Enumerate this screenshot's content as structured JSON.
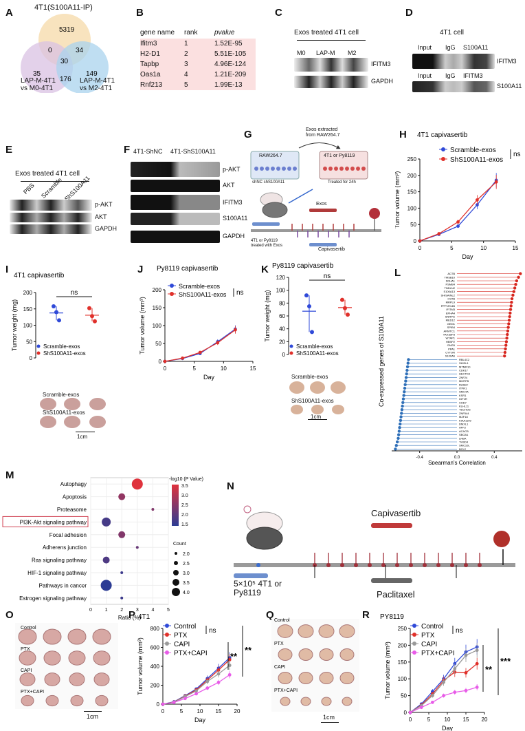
{
  "panels": {
    "A": "A",
    "B": "B",
    "C": "C",
    "D": "D",
    "E": "E",
    "F": "F",
    "G": "G",
    "H": "H",
    "I": "I",
    "J": "J",
    "K": "K",
    "L": "L",
    "M": "M",
    "N": "N",
    "O": "O",
    "P": "P",
    "Q": "Q",
    "R": "R"
  },
  "venn": {
    "title": "4T1(S100A11-IP)",
    "label_left": "LAP-M-4T1\nvs M0-4T1",
    "label_right": "LAP-M-4T1\nvs M2-4T1",
    "regions": {
      "top_only": "5319",
      "left_only": "35",
      "right_only": "149",
      "top_left": "0",
      "top_right": "34",
      "left_right": "176",
      "center": "30"
    },
    "colors": {
      "top": "#f5d9a8",
      "left": "#d9c2e3",
      "right": "#a9d3ee"
    }
  },
  "table_b": {
    "headers": [
      "gene name",
      "rank",
      "pvalue"
    ],
    "rows": [
      [
        "Ifitm3",
        "1",
        "1.52E-95"
      ],
      [
        "H2-D1",
        "2",
        "5.51E-105"
      ],
      [
        "Tapbp",
        "3",
        "4.96E-124"
      ],
      [
        "Oas1a",
        "4",
        "1.21E-209"
      ],
      [
        "Rnf213",
        "5",
        "1.99E-13"
      ]
    ],
    "row_color": "#fbe0e0"
  },
  "blot_c": {
    "title": "Exos treated 4T1 cell",
    "lanes": [
      "M0",
      "LAP-M",
      "M2"
    ],
    "bands": [
      "IFITM3",
      "GAPDH"
    ]
  },
  "blot_d": {
    "title": "4T1 cell",
    "lanes1": [
      "Input",
      "IgG",
      "S100A11"
    ],
    "band1": "IFITM3",
    "lanes2": [
      "Input",
      "IgG",
      "IFITM3"
    ],
    "band2": "S100A11"
  },
  "blot_e": {
    "title": "Exos treated 4T1 cell",
    "lanes": [
      "PBS",
      "Scramble",
      "ShS100A11"
    ],
    "bands": [
      "p-AKT",
      "AKT",
      "GAPDH"
    ]
  },
  "blot_f": {
    "lanes": [
      "4T1-ShNC",
      "4T1-ShS100A11"
    ],
    "bands": [
      "p-AKT",
      "AKT",
      "IFITM3",
      "S100A11",
      "GAPDH"
    ]
  },
  "schematic_g": {
    "note": "Exos extracted\nfrom RAW264.7",
    "dish1": "RAW264.7",
    "dish1_sub": "shNC  shS100A11",
    "dish2": "4T1 or Py8119",
    "dish2_sub": "Treated for 24h",
    "exos": "Exos",
    "drug": "Capivasertib",
    "mouse_note": "4T1 or Py8119\ntreated with Exos"
  },
  "chart_data": [
    {
      "id": "H",
      "type": "line",
      "title": "4T1 capivasertib",
      "xlabel": "Day",
      "ylabel": "Tumor volume (mm³)",
      "xlim": [
        0,
        15
      ],
      "ylim": [
        0,
        250
      ],
      "xticks": [
        0,
        5,
        10,
        15
      ],
      "yticks": [
        0,
        50,
        100,
        150,
        200,
        250
      ],
      "series": [
        {
          "name": "Scramble-exos",
          "color": "#2f49d8",
          "x": [
            0,
            3,
            6,
            9,
            12
          ],
          "y": [
            0,
            20,
            45,
            110,
            185
          ]
        },
        {
          "name": "ShS100A11-exos",
          "color": "#e0302a",
          "x": [
            0,
            3,
            6,
            9,
            12
          ],
          "y": [
            0,
            22,
            58,
            125,
            180
          ]
        }
      ],
      "annotation": "ns"
    },
    {
      "id": "I",
      "type": "scatter",
      "title": "4T1 capivasertib",
      "ylabel": "Tumor weight (mg)",
      "ylim": [
        0,
        200
      ],
      "yticks": [
        0,
        50,
        100,
        150,
        200
      ],
      "series": [
        {
          "name": "Scramble-exos",
          "color": "#2f49d8",
          "values": [
            158,
            140,
            115
          ]
        },
        {
          "name": "ShS100A11-exos",
          "color": "#e0302a",
          "values": [
            152,
            128,
            112
          ]
        }
      ],
      "annotation": "ns",
      "photo_labels": [
        "Scramble-exos",
        "ShS100A11-exos"
      ],
      "scale": "1cm"
    },
    {
      "id": "J",
      "type": "line",
      "title": "Py8119 capivasertib",
      "xlabel": "Day",
      "ylabel": "Tumor volume (mm³)",
      "xlim": [
        0,
        15
      ],
      "ylim": [
        0,
        200
      ],
      "xticks": [
        0,
        5,
        10,
        15
      ],
      "yticks": [
        0,
        50,
        100,
        150,
        200
      ],
      "series": [
        {
          "name": "Scramble-exos",
          "color": "#2f49d8",
          "x": [
            0,
            3,
            6,
            9,
            12
          ],
          "y": [
            0,
            8,
            22,
            55,
            90
          ]
        },
        {
          "name": "ShS100A11-exos",
          "color": "#e0302a",
          "x": [
            0,
            3,
            6,
            9,
            12
          ],
          "y": [
            0,
            9,
            25,
            52,
            88
          ]
        }
      ],
      "annotation": "ns"
    },
    {
      "id": "K",
      "type": "scatter",
      "title": "Py8119 capivasertib",
      "ylabel": "Tumor weight (mg)",
      "ylim": [
        0,
        120
      ],
      "yticks": [
        0,
        20,
        40,
        60,
        80,
        100,
        120
      ],
      "series": [
        {
          "name": "Scramble-exos",
          "color": "#2f49d8",
          "values": [
            92,
            75,
            35
          ]
        },
        {
          "name": "ShS100A11-exos",
          "color": "#e0302a",
          "values": [
            85,
            72,
            62
          ]
        }
      ],
      "annotation": "ns",
      "photo_labels": [
        "Scramble-exos",
        "ShS100A11-exos"
      ],
      "scale": "1cm"
    },
    {
      "id": "L",
      "type": "lollipop",
      "ylabel": "Co-expressed genes of S100A11",
      "xlabel": "Spearman's Correlation",
      "xlim": [
        -0.7,
        0.7
      ],
      "xticks": [
        -0.4,
        0.0,
        0.4
      ],
      "positive": {
        "color": "#d7261e",
        "genes": [
          "ACTB",
          "TMSB10",
          "SDHA1",
          "PSMB4",
          "TNDLN2",
          "S100A13",
          "SHISAINL2",
          "CSTB",
          "MRPL9",
          "PPP1R14B",
          "IFITM3",
          "EPHA4",
          "SNRPG",
          "MED12",
          "GEM1",
          "SPIB4",
          "ARMTC1",
          "TAX1BP3",
          "WTAP1",
          "HEBP2",
          "GNG5",
          "PPA1",
          "CYTOR",
          "S100A6"
        ],
        "values": [
          0.68,
          0.66,
          0.64,
          0.63,
          0.62,
          0.61,
          0.6,
          0.59,
          0.585,
          0.58,
          0.575,
          0.57,
          0.565,
          0.56,
          0.555,
          0.55,
          0.545,
          0.54,
          0.535,
          0.53,
          0.525,
          0.52,
          0.515,
          0.51
        ]
      },
      "negative": {
        "color": "#2e6fb8",
        "genes": [
          "RBL4C2",
          "SKIDL1",
          "MTMR10",
          "CDK17",
          "HECTD4",
          "ZNF24",
          "MMTFB",
          "RASEF",
          "ITPR1",
          "SMC4A",
          "KSR1",
          "IGF1R",
          "CHD7",
          "KLHL11",
          "TECHOS",
          "ZNF544",
          "MZF18",
          "KIAA1109",
          "DMXL1",
          "AFF3",
          "ACACB",
          "SBGA1",
          "LRBA",
          "THSD4",
          "SMC10L",
          "BCL2"
        ],
        "values": [
          -0.52,
          -0.525,
          -0.53,
          -0.535,
          -0.54,
          -0.545,
          -0.55,
          -0.555,
          -0.56,
          -0.565,
          -0.57,
          -0.575,
          -0.58,
          -0.585,
          -0.59,
          -0.595,
          -0.6,
          -0.605,
          -0.61,
          -0.615,
          -0.62,
          -0.625,
          -0.63,
          -0.64,
          -0.65,
          -0.66
        ]
      }
    },
    {
      "id": "M",
      "type": "bubble",
      "xlabel": "Ratio (%)",
      "xlim": [
        0,
        5
      ],
      "xticks": [
        0,
        1,
        2,
        3,
        4,
        5
      ],
      "colorbar_title": "-log10 (P Value)",
      "colorbar_ticks": [
        "3.5",
        "3.0",
        "2.5",
        "2.0",
        "1.5"
      ],
      "size_title": "Count",
      "size_ticks": [
        "2.0",
        "2.5",
        "3.0",
        "3.5",
        "4.0"
      ],
      "categories": [
        "Autophagy",
        "Apoptosis",
        "Proteasome",
        "PI3K-Akt signaling pathway",
        "Focal adhesion",
        "Adherens junction",
        "Ras signaling pathway",
        "HIF-1 signaling pathway",
        "Pathways in cancer",
        "Estrogen signaling pathway"
      ],
      "ratio": [
        3,
        2,
        4,
        1,
        2,
        3,
        1,
        2,
        1,
        2
      ],
      "count": [
        4,
        3,
        2,
        3.5,
        3,
        2,
        3,
        2,
        4,
        2
      ],
      "logp": [
        3.5,
        2.6,
        2.4,
        1.7,
        2.4,
        2.1,
        1.8,
        1.6,
        1.4,
        1.6
      ],
      "highlight": "PI3K-Akt signaling pathway"
    },
    {
      "id": "P",
      "type": "line",
      "title": "4T1",
      "xlabel": "Day",
      "ylabel": "Tumor volume (mm³)",
      "xlim": [
        0,
        20
      ],
      "ylim": [
        0,
        800
      ],
      "xticks": [
        0,
        5,
        10,
        15,
        20
      ],
      "yticks": [
        0,
        200,
        400,
        600,
        800
      ],
      "series": [
        {
          "name": "Control",
          "color": "#2f49d8",
          "x": [
            0,
            3,
            6,
            9,
            12,
            15,
            18
          ],
          "y": [
            0,
            25,
            90,
            160,
            270,
            380,
            490
          ]
        },
        {
          "name": "PTX",
          "color": "#e0302a",
          "x": [
            0,
            3,
            6,
            9,
            12,
            15,
            18
          ],
          "y": [
            0,
            22,
            85,
            150,
            255,
            360,
            470
          ]
        },
        {
          "name": "CAPI",
          "color": "#999999",
          "x": [
            0,
            3,
            6,
            9,
            12,
            15,
            18
          ],
          "y": [
            0,
            20,
            80,
            140,
            240,
            320,
            410
          ]
        },
        {
          "name": "PTX+CAPI",
          "color": "#e85ce8",
          "x": [
            0,
            3,
            6,
            9,
            12,
            15,
            18
          ],
          "y": [
            0,
            18,
            60,
            110,
            170,
            230,
            310
          ]
        }
      ],
      "annotations": [
        "ns",
        "**",
        "**"
      ]
    },
    {
      "id": "R",
      "type": "line",
      "title": "PY8119",
      "xlabel": "Day",
      "ylabel": "Tumor volume (mm³)",
      "xlim": [
        0,
        20
      ],
      "ylim": [
        0,
        250
      ],
      "xticks": [
        0,
        5,
        10,
        15,
        20
      ],
      "yticks": [
        0,
        50,
        100,
        150,
        200,
        250
      ],
      "series": [
        {
          "name": "Control",
          "color": "#2f49d8",
          "x": [
            0,
            3,
            6,
            9,
            12,
            15,
            18
          ],
          "y": [
            0,
            25,
            62,
            100,
            145,
            180,
            195
          ]
        },
        {
          "name": "PTX",
          "color": "#e0302a",
          "x": [
            0,
            3,
            6,
            9,
            12,
            15,
            18
          ],
          "y": [
            0,
            22,
            55,
            95,
            120,
            118,
            145
          ]
        },
        {
          "name": "CAPI",
          "color": "#999999",
          "x": [
            0,
            3,
            6,
            9,
            12,
            15,
            18
          ],
          "y": [
            0,
            20,
            50,
            90,
            130,
            170,
            185
          ]
        },
        {
          "name": "PTX+CAPI",
          "color": "#e85ce8",
          "x": [
            0,
            3,
            6,
            9,
            12,
            15,
            18
          ],
          "y": [
            0,
            15,
            30,
            50,
            60,
            65,
            75
          ]
        }
      ],
      "annotations": [
        "ns",
        "**",
        "***"
      ]
    }
  ],
  "schematic_n": {
    "drug1": "Capivasertib",
    "drug2": "Paclitaxel",
    "inoc": "5×10⁵ 4T1 or\nPy8119"
  },
  "photo_o": {
    "rows": [
      "Control",
      "PTX",
      "CAPI",
      "PTX+CAPI"
    ],
    "scale": "1cm"
  },
  "photo_q": {
    "rows": [
      "Control",
      "PTX",
      "CAPI",
      "PTX+CAPI"
    ],
    "scale": "1cm"
  }
}
